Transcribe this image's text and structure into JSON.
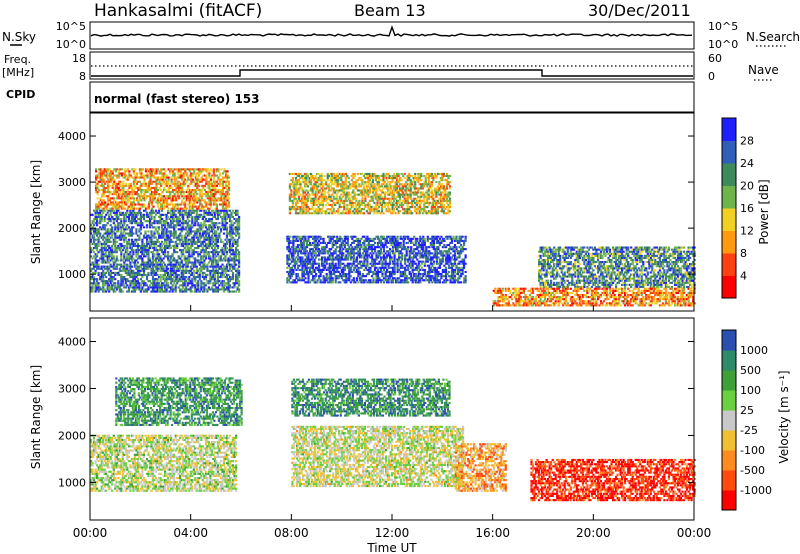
{
  "header": {
    "station": "Hankasalmi (fitACF)",
    "beam": "Beam 13",
    "date": "30/Dec/2011"
  },
  "noise_panel": {
    "left_label": "N.Sky",
    "right_label": "N.Search",
    "left_ticks": [
      "10^5",
      "10^0"
    ],
    "right_ticks": [
      "10^5",
      "10^0"
    ]
  },
  "freq_panel": {
    "left_label_line1": "Freq.",
    "left_label_line2": "[MHz]",
    "left_ticks": [
      "18",
      "8"
    ],
    "right_ticks": [
      "60",
      "0"
    ],
    "right_label": "Nave",
    "cpid_label": "CPID",
    "mode_text": "normal (fast stereo) 153"
  },
  "chart_data": [
    {
      "type": "heatmap",
      "name": "power",
      "ylabel": "Slant Range [km]",
      "y_ticks": [
        "1000",
        "2000",
        "3000",
        "4000"
      ],
      "ylim": [
        200,
        4500
      ],
      "colorbar_label": "Power [dB]",
      "colorbar_ticks": [
        "4",
        "8",
        "12",
        "16",
        "20",
        "24",
        "28"
      ],
      "colorbar_colors": [
        "#1f1fff",
        "#2f5fb8",
        "#3f8a5a",
        "#6fb44a",
        "#f0d020",
        "#ff9a10",
        "#ff4010",
        "#ff0000"
      ],
      "scatter_regions": [
        {
          "t0": 0.0,
          "t1": 5.9,
          "r0": 600,
          "r1": 2400,
          "level": 0.75
        },
        {
          "t0": 0.2,
          "t1": 5.5,
          "r0": 2400,
          "r1": 3300,
          "level": 0.35
        },
        {
          "t0": 7.8,
          "t1": 14.9,
          "r0": 800,
          "r1": 1800,
          "level": 0.85
        },
        {
          "t0": 7.9,
          "t1": 14.3,
          "r0": 2300,
          "r1": 3200,
          "level": 0.45
        },
        {
          "t0": 17.8,
          "t1": 24.0,
          "r0": 700,
          "r1": 1600,
          "level": 0.7
        },
        {
          "t0": 16.0,
          "t1": 24.0,
          "r0": 300,
          "r1": 700,
          "level": 0.3
        }
      ]
    },
    {
      "type": "heatmap",
      "name": "velocity",
      "ylabel": "Slant Range [km]",
      "y_ticks": [
        "1000",
        "2000",
        "3000",
        "4000"
      ],
      "ylim": [
        200,
        4500
      ],
      "colorbar_label": "Velocity [m s⁻¹]",
      "colorbar_ticks": [
        "1000",
        "500",
        "100",
        "25",
        "-25",
        "-100",
        "-500",
        "-1000"
      ],
      "colorbar_colors": [
        "#2a4fb0",
        "#2f8a6a",
        "#3fa03a",
        "#6ad040",
        "#c8c8c8",
        "#f0c030",
        "#ff8a20",
        "#ff4a10",
        "#ff0000"
      ],
      "scatter_regions": [
        {
          "t0": 0.0,
          "t1": 5.8,
          "r0": 800,
          "r1": 2000,
          "level": -0.05
        },
        {
          "t0": 1.0,
          "t1": 6.0,
          "r0": 2200,
          "r1": 3200,
          "level": -0.55
        },
        {
          "t0": 8.0,
          "t1": 14.8,
          "r0": 900,
          "r1": 2200,
          "level": 0.0
        },
        {
          "t0": 8.0,
          "t1": 14.3,
          "r0": 2400,
          "r1": 3200,
          "level": -0.6
        },
        {
          "t0": 14.5,
          "t1": 16.5,
          "r0": 800,
          "r1": 1800,
          "level": 0.35
        },
        {
          "t0": 17.5,
          "t1": 24.0,
          "r0": 600,
          "r1": 1500,
          "level": 0.8
        }
      ]
    }
  ],
  "xaxis": {
    "label": "Time UT",
    "ticks": [
      "00:00",
      "04:00",
      "08:00",
      "12:00",
      "16:00",
      "20:00",
      "00:00"
    ],
    "hours": 24
  }
}
